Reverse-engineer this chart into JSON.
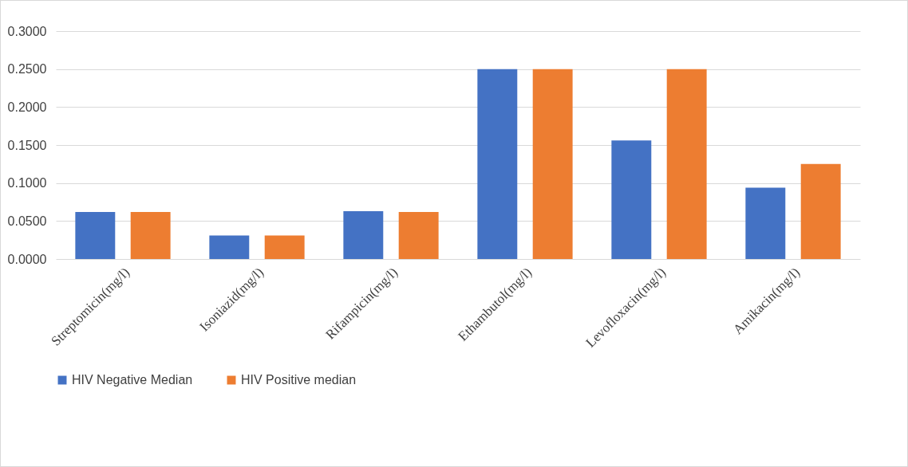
{
  "chart_data": {
    "type": "bar",
    "categories": [
      "Streptomicin(mg/l)",
      "Isoniazid(mg/l)",
      "Rifampicin(mg/l)",
      "Ethambutol(mg/l)",
      "Levofloxacin(mg/l)",
      "Amikacin(mg/l)"
    ],
    "series": [
      {
        "name": "HIV Negative Median",
        "color": "#4472c4",
        "values": [
          0.062,
          0.031,
          0.063,
          0.25,
          0.156,
          0.094
        ]
      },
      {
        "name": "HIV Positive median",
        "color": "#ed7d31",
        "values": [
          0.062,
          0.031,
          0.062,
          0.25,
          0.25,
          0.125
        ]
      }
    ],
    "ylim": [
      0,
      0.3
    ],
    "yticks": [
      {
        "value": 0,
        "label": "0.0000"
      },
      {
        "value": 0.05,
        "label": "0.0500"
      },
      {
        "value": 0.1,
        "label": "0.1000"
      },
      {
        "value": 0.15,
        "label": "0.1500"
      },
      {
        "value": 0.2,
        "label": "0.2000"
      },
      {
        "value": 0.25,
        "label": "0.2500"
      },
      {
        "value": 0.3,
        "label": "0.3000"
      }
    ],
    "grid": "y",
    "legend": "bottom"
  }
}
